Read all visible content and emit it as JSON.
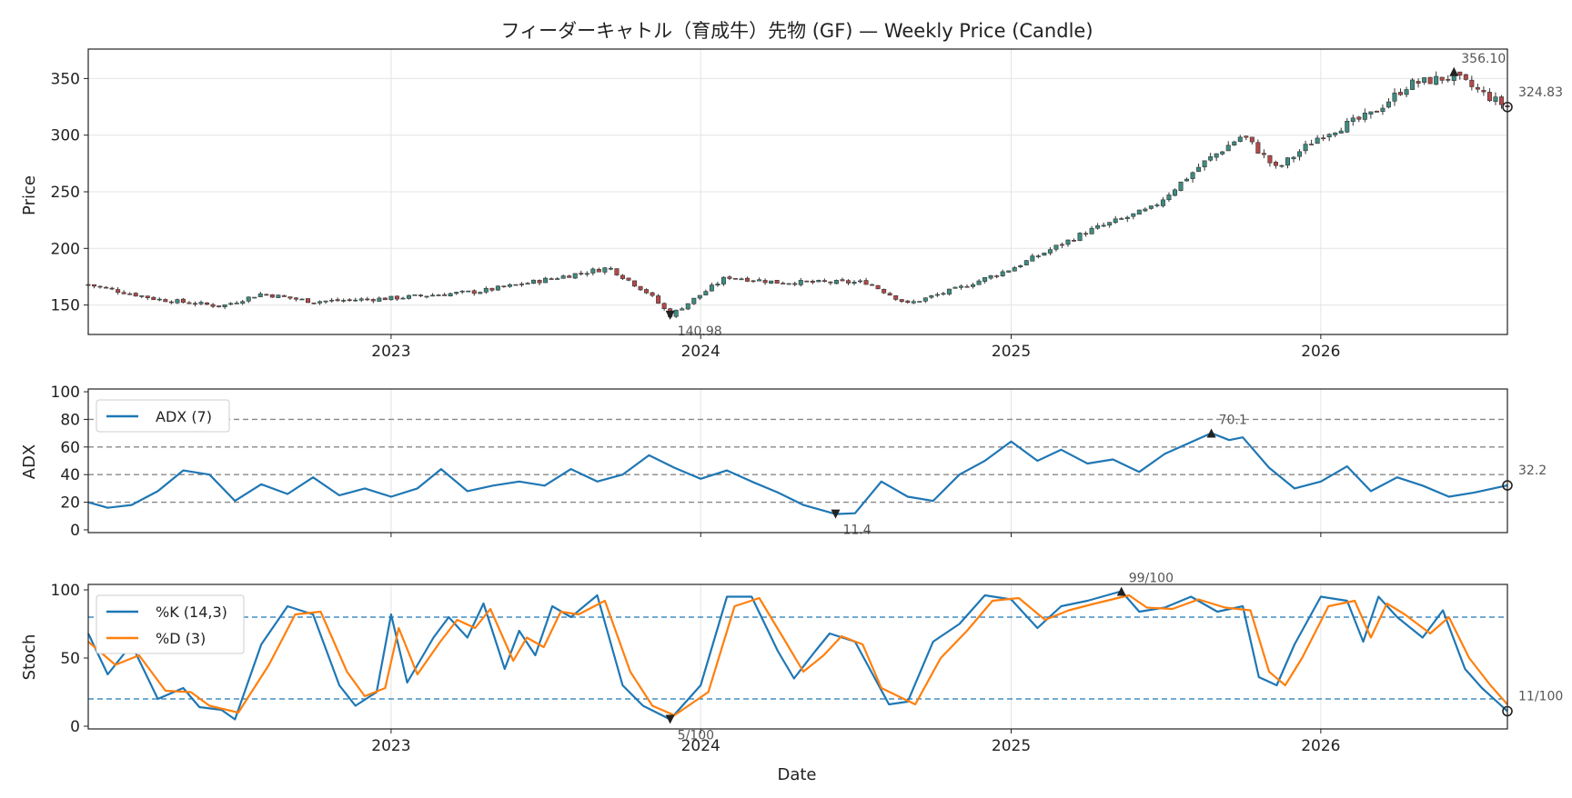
{
  "chart_data": {
    "type": "candlestick-with-indicators",
    "title": "フィーダーキャトル（育成牛）先物 (GF) — Weekly Price (Candle)",
    "xlabel": "Date",
    "x_range": [
      "2022-01-09",
      "2026-08-09"
    ],
    "x_ticks": [
      "2023",
      "2024",
      "2025",
      "2026"
    ],
    "colors": {
      "up": "#3d8c80",
      "down": "#b54848",
      "wick": "#333333",
      "adx": "#1f77b4",
      "k": "#1f77b4",
      "d": "#ff7f0e",
      "ref_gray": "#888888",
      "ref_blue": "#1f77b4"
    },
    "price": {
      "ylabel": "Price",
      "ylim": [
        124,
        376
      ],
      "y_ticks": [
        150,
        200,
        250,
        300,
        350
      ],
      "close_anchors": [
        [
          "2022-01-09",
          168
        ],
        [
          "2022-04-01",
          155
        ],
        [
          "2022-06-15",
          149
        ],
        [
          "2022-08-01",
          160
        ],
        [
          "2022-10-01",
          153
        ],
        [
          "2023-01-01",
          156
        ],
        [
          "2023-04-15",
          162
        ],
        [
          "2023-06-15",
          170
        ],
        [
          "2023-09-15",
          183
        ],
        [
          "2023-11-01",
          160
        ],
        [
          "2023-11-26",
          141
        ],
        [
          "2024-02-01",
          175
        ],
        [
          "2024-04-01",
          170
        ],
        [
          "2024-07-15",
          170
        ],
        [
          "2024-09-01",
          151
        ],
        [
          "2024-11-01",
          165
        ],
        [
          "2025-01-01",
          182
        ],
        [
          "2025-04-01",
          215
        ],
        [
          "2025-06-15",
          235
        ],
        [
          "2025-08-15",
          275
        ],
        [
          "2025-10-01",
          300
        ],
        [
          "2025-11-10",
          270
        ],
        [
          "2026-01-01",
          300
        ],
        [
          "2026-03-01",
          318
        ],
        [
          "2026-04-15",
          345
        ],
        [
          "2026-06-07",
          352
        ],
        [
          "2026-07-15",
          335
        ],
        [
          "2026-08-09",
          324.83
        ]
      ],
      "annotations": [
        {
          "label": "356.10",
          "date": "2026-06-07",
          "value": 356.1,
          "kind": "max"
        },
        {
          "label": "140.98",
          "date": "2023-11-26",
          "value": 140.98,
          "kind": "min"
        },
        {
          "label": "324.83",
          "date": "2026-08-09",
          "value": 324.83,
          "kind": "last"
        }
      ]
    },
    "adx": {
      "ylabel": "ADX",
      "ylim": [
        -2,
        102
      ],
      "y_ticks": [
        0,
        20,
        40,
        60,
        80,
        100
      ],
      "ref_lines": [
        20,
        40,
        60,
        80
      ],
      "series": [
        {
          "name": "ADX (7)",
          "points": [
            [
              "2022-01-09",
              20
            ],
            [
              "2022-02-01",
              16
            ],
            [
              "2022-03-01",
              18
            ],
            [
              "2022-04-01",
              28
            ],
            [
              "2022-05-01",
              43
            ],
            [
              "2022-06-01",
              40
            ],
            [
              "2022-07-01",
              21
            ],
            [
              "2022-08-01",
              33
            ],
            [
              "2022-09-01",
              26
            ],
            [
              "2022-10-01",
              38
            ],
            [
              "2022-11-01",
              25
            ],
            [
              "2022-12-01",
              30
            ],
            [
              "2023-01-01",
              24
            ],
            [
              "2023-02-01",
              30
            ],
            [
              "2023-03-01",
              44
            ],
            [
              "2023-04-01",
              28
            ],
            [
              "2023-05-01",
              32
            ],
            [
              "2023-06-01",
              35
            ],
            [
              "2023-07-01",
              32
            ],
            [
              "2023-08-01",
              44
            ],
            [
              "2023-09-01",
              35
            ],
            [
              "2023-10-01",
              40
            ],
            [
              "2023-11-01",
              54
            ],
            [
              "2023-12-01",
              45
            ],
            [
              "2024-01-01",
              37
            ],
            [
              "2024-02-01",
              43
            ],
            [
              "2024-03-01",
              35
            ],
            [
              "2024-04-01",
              27
            ],
            [
              "2024-05-01",
              18
            ],
            [
              "2024-06-08",
              11.4
            ],
            [
              "2024-07-01",
              12
            ],
            [
              "2024-08-01",
              35
            ],
            [
              "2024-09-01",
              24
            ],
            [
              "2024-10-01",
              21
            ],
            [
              "2024-11-01",
              40
            ],
            [
              "2024-12-01",
              50
            ],
            [
              "2025-01-01",
              64
            ],
            [
              "2025-02-01",
              50
            ],
            [
              "2025-03-01",
              58
            ],
            [
              "2025-04-01",
              48
            ],
            [
              "2025-05-01",
              51
            ],
            [
              "2025-06-01",
              42
            ],
            [
              "2025-07-01",
              55
            ],
            [
              "2025-08-25",
              70.1
            ],
            [
              "2025-09-15",
              65
            ],
            [
              "2025-10-01",
              67
            ],
            [
              "2025-11-01",
              45
            ],
            [
              "2025-12-01",
              30
            ],
            [
              "2026-01-01",
              35
            ],
            [
              "2026-02-01",
              46
            ],
            [
              "2026-03-01",
              28
            ],
            [
              "2026-04-01",
              38
            ],
            [
              "2026-05-01",
              32
            ],
            [
              "2026-06-01",
              24
            ],
            [
              "2026-07-01",
              27
            ],
            [
              "2026-08-09",
              32.2
            ]
          ]
        }
      ],
      "annotations": [
        {
          "label": "70.1",
          "date": "2025-08-25",
          "value": 70.1,
          "kind": "max"
        },
        {
          "label": "11.4",
          "date": "2024-06-08",
          "value": 11.4,
          "kind": "min"
        },
        {
          "label": "32.2",
          "date": "2026-08-09",
          "value": 32.2,
          "kind": "last"
        }
      ]
    },
    "stoch": {
      "ylabel": "Stoch",
      "ylim": [
        -2,
        104
      ],
      "y_ticks": [
        0,
        50,
        100
      ],
      "ref_lines": [
        20,
        80
      ],
      "series": [
        {
          "name": "%K (14,3)",
          "points": [
            [
              "2022-01-09",
              68
            ],
            [
              "2022-02-01",
              38
            ],
            [
              "2022-03-01",
              60
            ],
            [
              "2022-04-01",
              20
            ],
            [
              "2022-05-01",
              28
            ],
            [
              "2022-05-20",
              14
            ],
            [
              "2022-06-15",
              12
            ],
            [
              "2022-07-01",
              5
            ],
            [
              "2022-08-01",
              60
            ],
            [
              "2022-09-01",
              88
            ],
            [
              "2022-10-01",
              82
            ],
            [
              "2022-11-01",
              30
            ],
            [
              "2022-11-20",
              15
            ],
            [
              "2022-12-15",
              25
            ],
            [
              "2023-01-01",
              82
            ],
            [
              "2023-01-20",
              32
            ],
            [
              "2023-02-20",
              65
            ],
            [
              "2023-03-10",
              80
            ],
            [
              "2023-04-01",
              65
            ],
            [
              "2023-04-20",
              90
            ],
            [
              "2023-05-15",
              42
            ],
            [
              "2023-06-01",
              70
            ],
            [
              "2023-06-20",
              52
            ],
            [
              "2023-07-10",
              88
            ],
            [
              "2023-08-01",
              80
            ],
            [
              "2023-09-01",
              96
            ],
            [
              "2023-10-01",
              30
            ],
            [
              "2023-10-25",
              15
            ],
            [
              "2023-11-26",
              5
            ],
            [
              "2024-01-01",
              30
            ],
            [
              "2024-02-01",
              95
            ],
            [
              "2024-03-01",
              95
            ],
            [
              "2024-04-01",
              55
            ],
            [
              "2024-04-20",
              35
            ],
            [
              "2024-05-15",
              55
            ],
            [
              "2024-06-01",
              68
            ],
            [
              "2024-07-01",
              62
            ],
            [
              "2024-07-20",
              40
            ],
            [
              "2024-08-10",
              16
            ],
            [
              "2024-09-01",
              18
            ],
            [
              "2024-10-01",
              62
            ],
            [
              "2024-11-01",
              75
            ],
            [
              "2024-12-01",
              96
            ],
            [
              "2025-01-01",
              93
            ],
            [
              "2025-02-01",
              72
            ],
            [
              "2025-03-01",
              88
            ],
            [
              "2025-04-01",
              92
            ],
            [
              "2025-05-11",
              99
            ],
            [
              "2025-06-01",
              84
            ],
            [
              "2025-07-01",
              87
            ],
            [
              "2025-08-01",
              95
            ],
            [
              "2025-09-01",
              84
            ],
            [
              "2025-10-01",
              88
            ],
            [
              "2025-10-20",
              36
            ],
            [
              "2025-11-10",
              30
            ],
            [
              "2025-12-01",
              60
            ],
            [
              "2026-01-01",
              95
            ],
            [
              "2026-02-01",
              92
            ],
            [
              "2026-02-20",
              62
            ],
            [
              "2026-03-10",
              95
            ],
            [
              "2026-04-01",
              80
            ],
            [
              "2026-05-01",
              65
            ],
            [
              "2026-05-25",
              85
            ],
            [
              "2026-06-20",
              42
            ],
            [
              "2026-07-10",
              28
            ],
            [
              "2026-08-09",
              11
            ]
          ]
        },
        {
          "name": "%D (3)",
          "points": [
            [
              "2022-01-09",
              62
            ],
            [
              "2022-02-10",
              45
            ],
            [
              "2022-03-10",
              52
            ],
            [
              "2022-04-10",
              26
            ],
            [
              "2022-05-10",
              25
            ],
            [
              "2022-06-01",
              15
            ],
            [
              "2022-07-05",
              10
            ],
            [
              "2022-08-10",
              45
            ],
            [
              "2022-09-10",
              82
            ],
            [
              "2022-10-10",
              84
            ],
            [
              "2022-11-10",
              40
            ],
            [
              "2022-12-01",
              22
            ],
            [
              "2022-12-25",
              28
            ],
            [
              "2023-01-10",
              72
            ],
            [
              "2023-02-01",
              38
            ],
            [
              "2023-02-28",
              62
            ],
            [
              "2023-03-20",
              78
            ],
            [
              "2023-04-10",
              72
            ],
            [
              "2023-04-28",
              86
            ],
            [
              "2023-05-25",
              48
            ],
            [
              "2023-06-10",
              65
            ],
            [
              "2023-06-30",
              58
            ],
            [
              "2023-07-20",
              84
            ],
            [
              "2023-08-10",
              82
            ],
            [
              "2023-09-10",
              92
            ],
            [
              "2023-10-10",
              40
            ],
            [
              "2023-11-05",
              15
            ],
            [
              "2023-12-01",
              8
            ],
            [
              "2024-01-10",
              25
            ],
            [
              "2024-02-10",
              88
            ],
            [
              "2024-03-10",
              94
            ],
            [
              "2024-04-10",
              62
            ],
            [
              "2024-05-01",
              40
            ],
            [
              "2024-05-25",
              52
            ],
            [
              "2024-06-15",
              66
            ],
            [
              "2024-07-10",
              60
            ],
            [
              "2024-08-01",
              28
            ],
            [
              "2024-09-10",
              16
            ],
            [
              "2024-10-10",
              50
            ],
            [
              "2024-11-10",
              70
            ],
            [
              "2024-12-10",
              92
            ],
            [
              "2025-01-10",
              94
            ],
            [
              "2025-02-10",
              78
            ],
            [
              "2025-03-10",
              85
            ],
            [
              "2025-04-10",
              90
            ],
            [
              "2025-05-20",
              96
            ],
            [
              "2025-06-10",
              87
            ],
            [
              "2025-07-10",
              86
            ],
            [
              "2025-08-10",
              93
            ],
            [
              "2025-09-10",
              87
            ],
            [
              "2025-10-10",
              85
            ],
            [
              "2025-11-01",
              40
            ],
            [
              "2025-11-20",
              30
            ],
            [
              "2025-12-10",
              50
            ],
            [
              "2026-01-10",
              88
            ],
            [
              "2026-02-10",
              92
            ],
            [
              "2026-03-01",
              65
            ],
            [
              "2026-03-20",
              90
            ],
            [
              "2026-04-10",
              82
            ],
            [
              "2026-05-10",
              68
            ],
            [
              "2026-06-01",
              80
            ],
            [
              "2026-06-25",
              50
            ],
            [
              "2026-07-20",
              30
            ],
            [
              "2026-08-09",
              16
            ]
          ]
        }
      ],
      "annotations": [
        {
          "label": "99/100",
          "date": "2025-05-11",
          "value": 99,
          "kind": "max"
        },
        {
          "label": "5/100",
          "date": "2023-11-26",
          "value": 5,
          "kind": "min"
        },
        {
          "label": "11/100",
          "date": "2026-08-09",
          "value": 11,
          "kind": "last"
        }
      ]
    }
  }
}
